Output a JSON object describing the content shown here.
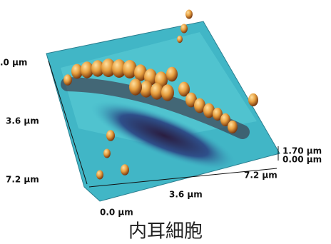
{
  "labels": {
    "left_axis": [
      ".0 µm",
      "3.6 µm",
      "7.2 µm"
    ],
    "bottom_axis": [
      "7.2 µm",
      "3.6 µm",
      "0.0 µm"
    ],
    "height_scale": [
      "1.70 µm",
      "0.00 µm"
    ]
  },
  "caption": "内耳細胞"
}
